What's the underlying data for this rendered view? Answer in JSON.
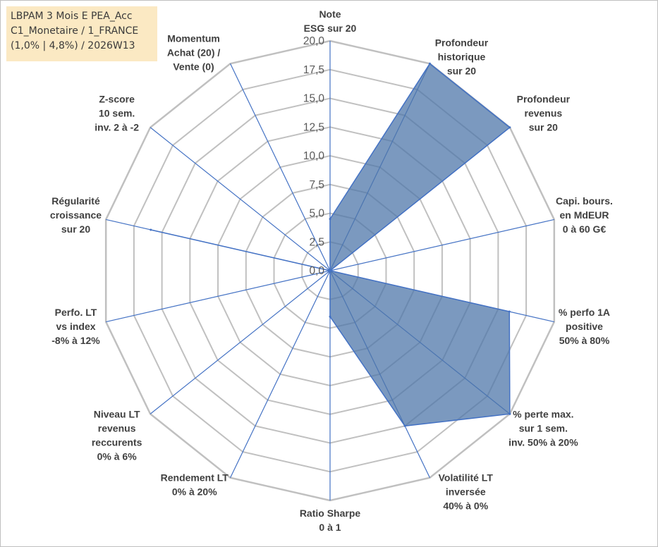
{
  "title_box": {
    "line1": "LBPAM 3 Mois E PEA_Acc",
    "line2": "C1_Monetaire / 1_FRANCE",
    "line3": "(1,0% | 4,8%) / 2026W13"
  },
  "colors": {
    "fill": "#4f77aa",
    "fill_opacity": "0.75",
    "spoke": "#4472c4",
    "ring": "#c0c0c0"
  },
  "chart_data": {
    "type": "radar",
    "rlim": [
      0,
      20
    ],
    "grid": true,
    "tick_labels": [
      "0,0",
      "2,5",
      "5,0",
      "7,5",
      "10,0",
      "12,5",
      "15,0",
      "17,5",
      "20,0"
    ],
    "axes": [
      {
        "label": [
          "Note",
          "ESG sur 20"
        ]
      },
      {
        "label": [
          "Profondeur",
          "historique",
          "sur 20"
        ]
      },
      {
        "label": [
          "Profondeur",
          "revenus",
          "sur 20"
        ]
      },
      {
        "label": [
          "Capi. bours.",
          "en MdEUR",
          "0 à 60 G€"
        ]
      },
      {
        "label": [
          "% perfo 1A",
          "positive",
          "50% à 80%"
        ]
      },
      {
        "label": [
          "% perte max.",
          "sur 1 sem.",
          "inv. 50% à 20%"
        ]
      },
      {
        "label": [
          "Volatilité LT",
          "inversée",
          "40% à 0%"
        ]
      },
      {
        "label": [
          "Ratio Sharpe",
          "0 à 1"
        ]
      },
      {
        "label": [
          "Rendement LT",
          "0% à 20%"
        ]
      },
      {
        "label": [
          "Niveau LT",
          "revenus",
          "reccurents",
          "0% à 6%"
        ]
      },
      {
        "label": [
          "Perfo. LT",
          "vs index",
          "-8% à 12%"
        ]
      },
      {
        "label": [
          "Régularité",
          "croissance",
          "sur 20"
        ]
      },
      {
        "label": [
          "Z-score",
          "10 sem.",
          "inv. 2 à -2"
        ]
      },
      {
        "label": [
          "Momentum",
          "Achat (20) /",
          "Vente (0)"
        ]
      }
    ],
    "series": [
      {
        "values": [
          4.5,
          20,
          20,
          0,
          16,
          20,
          15,
          4,
          0,
          0,
          0,
          16,
          0,
          0
        ]
      }
    ]
  }
}
